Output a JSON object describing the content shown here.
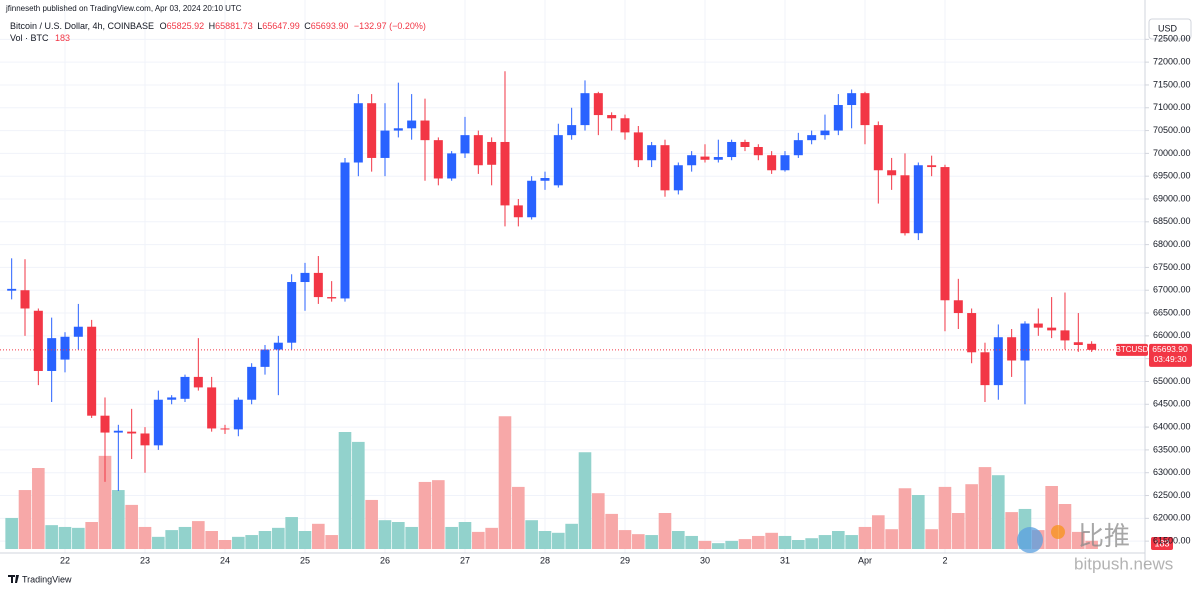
{
  "header": {
    "published": "jfinneseth published on TradingView.com, Apr 03, 2024 20:10 UTC",
    "symbol": "Bitcoin / U.S. Dollar, 4h, COINBASE",
    "ohlc": [
      {
        "key": "O",
        "value": "65825.92"
      },
      {
        "key": "H",
        "value": "65881.73"
      },
      {
        "key": "L",
        "value": "65647.99"
      },
      {
        "key": "C",
        "value": "65693.90"
      }
    ],
    "change": "−132.97 (−0.20%)",
    "volume_label": "Vol · BTC",
    "currency": "USD"
  },
  "chart_data": {
    "type": "candlestick",
    "categories": [
      null,
      null,
      null,
      null,
      "22",
      null,
      null,
      null,
      null,
      null,
      "23",
      null,
      null,
      null,
      null,
      null,
      "24",
      null,
      null,
      null,
      null,
      null,
      "25",
      null,
      null,
      null,
      null,
      null,
      "26",
      null,
      null,
      null,
      null,
      null,
      "27",
      null,
      null,
      null,
      null,
      null,
      "28",
      null,
      null,
      null,
      null,
      null,
      "29",
      null,
      null,
      null,
      null,
      null,
      "30",
      null,
      null,
      null,
      null,
      null,
      "31",
      null,
      null,
      null,
      null,
      null,
      "Apr",
      null,
      null,
      null,
      null,
      null,
      "2",
      null,
      null,
      null,
      null,
      null,
      null,
      null,
      null,
      null,
      null,
      null
    ],
    "open": [
      66990,
      67000,
      66550,
      65230,
      65480,
      65980,
      66200,
      64250,
      63880,
      63900,
      63860,
      63600,
      64600,
      64620,
      65100,
      64870,
      63970,
      63950,
      64600,
      65320,
      65700,
      65850,
      67180,
      67380,
      66850,
      66820,
      69800,
      71100,
      69900,
      70500,
      70550,
      70720,
      70290,
      69450,
      70000,
      70400,
      70250,
      70250,
      68860,
      68600,
      69400,
      69300,
      70400,
      70620,
      71320,
      70840,
      70770,
      70460,
      69850,
      70180,
      69190,
      69740,
      69930,
      69860,
      69920,
      70250,
      70140,
      69960,
      69630,
      69960,
      70290,
      70400,
      70500,
      71060,
      71320,
      70620,
      69630,
      69520,
      68250,
      69740,
      69700,
      66780,
      66500,
      65640,
      64920,
      65970,
      65460,
      66270,
      66180,
      66120,
      65860,
      65825.92
    ],
    "high": [
      67700,
      67680,
      66600,
      66400,
      66080,
      66700,
      66350,
      64650,
      64050,
      64400,
      64000,
      64800,
      64700,
      65150,
      65950,
      65100,
      64050,
      64650,
      65400,
      65800,
      66000,
      67350,
      67600,
      67750,
      67200,
      69900,
      71300,
      71300,
      71100,
      71550,
      71300,
      71200,
      70350,
      70050,
      70800,
      70500,
      70350,
      71800,
      69000,
      69500,
      69600,
      70650,
      71000,
      71600,
      71350,
      70900,
      70850,
      70600,
      70250,
      70300,
      69800,
      70050,
      70200,
      70300,
      70300,
      70300,
      70200,
      70050,
      70050,
      70450,
      70500,
      70850,
      71300,
      71400,
      71350,
      70700,
      69900,
      70000,
      69800,
      69950,
      69750,
      67250,
      66600,
      65850,
      66250,
      66150,
      66320,
      66600,
      66850,
      66950,
      66500,
      65881.73
    ],
    "low": [
      66800,
      66000,
      64920,
      64550,
      65200,
      65700,
      64200,
      62800,
      62600,
      63300,
      63000,
      63500,
      64500,
      64550,
      64800,
      63900,
      63850,
      63800,
      64500,
      65150,
      64700,
      65700,
      66550,
      66700,
      66750,
      66750,
      69500,
      69600,
      69500,
      70350,
      70300,
      69400,
      69300,
      69400,
      69900,
      69550,
      69300,
      68400,
      68400,
      68550,
      69200,
      69250,
      70300,
      70500,
      70400,
      70500,
      70300,
      69700,
      69700,
      69050,
      69100,
      69600,
      69800,
      69800,
      69850,
      70050,
      69850,
      69550,
      69600,
      69900,
      70200,
      70300,
      70400,
      70550,
      70200,
      68900,
      69200,
      68200,
      68100,
      69500,
      66100,
      66150,
      65400,
      64550,
      64600,
      65100,
      64500,
      66000,
      65950,
      65700,
      65650,
      65647.99
    ],
    "close": [
      67030,
      66600,
      65230,
      65950,
      65980,
      66200,
      64250,
      63880,
      63920,
      63860,
      63600,
      64600,
      64650,
      65100,
      64870,
      63970,
      63950,
      64600,
      65320,
      65700,
      65850,
      67180,
      67380,
      66850,
      66820,
      69800,
      71100,
      69900,
      70500,
      70550,
      70720,
      70290,
      69450,
      70000,
      70400,
      69740,
      69750,
      68860,
      68600,
      69400,
      69460,
      70400,
      70620,
      71320,
      70840,
      70770,
      70460,
      69850,
      70180,
      69190,
      69740,
      69960,
      69860,
      69920,
      70250,
      70140,
      69960,
      69630,
      69960,
      70290,
      70400,
      70500,
      71060,
      71320,
      70620,
      69630,
      69520,
      68250,
      69740,
      69700,
      66780,
      66500,
      65640,
      64920,
      65970,
      65460,
      66270,
      66180,
      66120,
      65900,
      65800,
      65693.9
    ],
    "volume": [
      690,
      1310,
      1800,
      530,
      490,
      470,
      600,
      2070,
      1310,
      980,
      490,
      270,
      420,
      490,
      620,
      400,
      200,
      270,
      310,
      400,
      470,
      710,
      400,
      560,
      310,
      2600,
      2380,
      1090,
      640,
      600,
      490,
      1490,
      1530,
      490,
      600,
      380,
      470,
      2950,
      1380,
      640,
      400,
      360,
      560,
      2150,
      1240,
      780,
      420,
      330,
      310,
      800,
      400,
      290,
      180,
      130,
      180,
      220,
      290,
      360,
      290,
      200,
      240,
      310,
      400,
      310,
      490,
      750,
      440,
      1350,
      1200,
      440,
      1380,
      800,
      1440,
      1820,
      1640,
      820,
      890,
      420,
      1400,
      1000,
      380,
      183
    ],
    "ylim": [
      61240,
      72880
    ],
    "yticks": [
      {
        "value": 61500,
        "label": "61500.00"
      },
      {
        "value": 62000,
        "label": "62000.00"
      },
      {
        "value": 62500,
        "label": "62500.00"
      },
      {
        "value": 63000,
        "label": "63000.00"
      },
      {
        "value": 63500,
        "label": "63500.00"
      },
      {
        "value": 64000,
        "label": "64000.00"
      },
      {
        "value": 64500,
        "label": "64500.00"
      },
      {
        "value": 65000,
        "label": "65000.00"
      },
      {
        "value": 65500,
        "label": "65500.00"
      },
      {
        "value": 66000,
        "label": "66000.00"
      },
      {
        "value": 66500,
        "label": "66500.00"
      },
      {
        "value": 67000,
        "label": "67000.00"
      },
      {
        "value": 67500,
        "label": "67500.00"
      },
      {
        "value": 68000,
        "label": "68000.00"
      },
      {
        "value": 68500,
        "label": "68500.00"
      },
      {
        "value": 69000,
        "label": "69000.00"
      },
      {
        "value": 69500,
        "label": "69500.00"
      },
      {
        "value": 70000,
        "label": "70000.00"
      },
      {
        "value": 70500,
        "label": "70500.00"
      },
      {
        "value": 71000,
        "label": "71000.00"
      },
      {
        "value": 71500,
        "label": "71500.00"
      },
      {
        "value": 72000,
        "label": "72000.00"
      },
      {
        "value": 72500,
        "label": "72500.00"
      }
    ],
    "vol_ylim": [
      0,
      6000
    ],
    "grid": true,
    "up_color": "#2962ff",
    "down_color": "#f23645",
    "volume_up_color": "#92d2cc",
    "volume_down_color": "#f7a8a8",
    "last_price": {
      "symbol": "BTCUSD",
      "value": 65693.9,
      "label": "65693.90",
      "countdown": "03:49:30"
    }
  },
  "footer": {
    "brand": "TradingView"
  },
  "watermark": {
    "brand": "比推",
    "site": "bitpush.news"
  }
}
